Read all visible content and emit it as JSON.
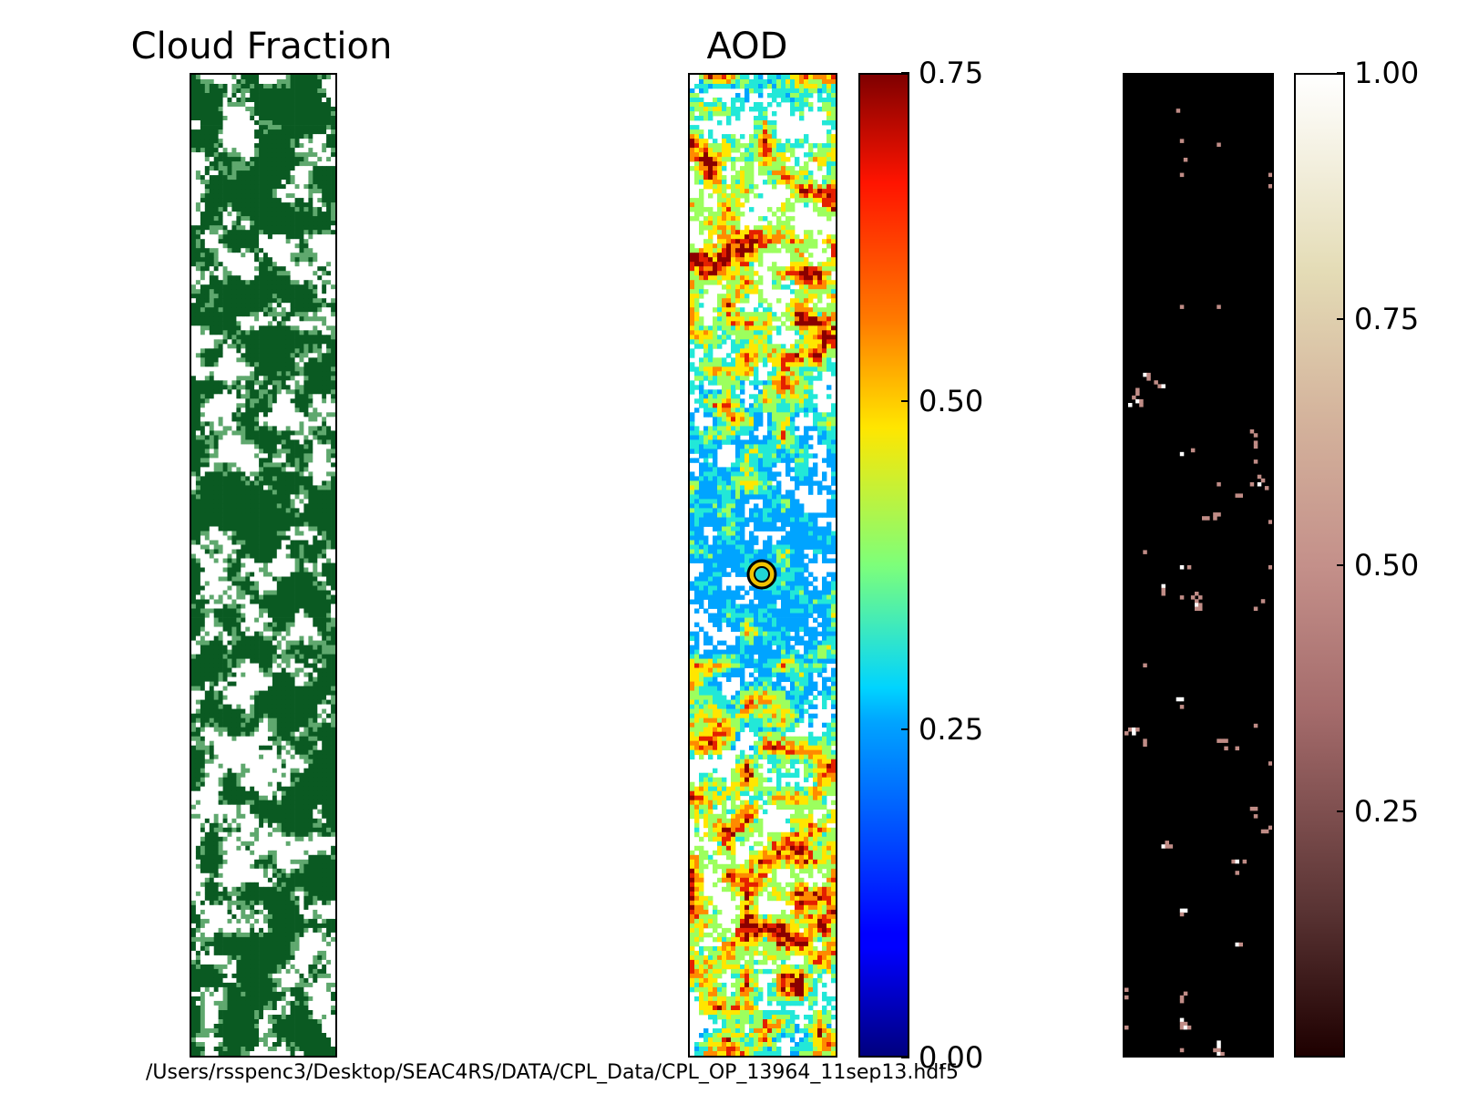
{
  "chart_data": [
    {
      "type": "heatmap",
      "title": "Cloud Fraction",
      "colormap": "Greens (white to dark green)",
      "colors": {
        "high": "#0a5a22",
        "mid": "#5fa86e",
        "low": "#ffffff"
      }
    },
    {
      "type": "heatmap",
      "title": "AOD",
      "colormap": "jet",
      "colorbar": {
        "range": [
          0.0,
          0.75
        ],
        "ticks": [
          "0.75",
          "0.50",
          "0.25",
          "0.00"
        ],
        "tick_values": [
          0.75,
          0.5,
          0.25,
          0.0
        ]
      },
      "marker": {
        "shape": "circle",
        "fill": "#20d6d6",
        "ring": "#f2c200",
        "outline": "#000000"
      }
    },
    {
      "type": "heatmap",
      "title": "",
      "colormap": "pink (black to white)",
      "colorbar": {
        "range": [
          0.0,
          1.0
        ],
        "ticks": [
          "1.00",
          "0.75",
          "0.50",
          "0.25"
        ],
        "tick_values": [
          1.0,
          0.75,
          0.5,
          0.25
        ]
      }
    }
  ],
  "footer": {
    "file_path": "/Users/rsspenc3/Desktop/SEAC4RS/DATA/CPL_Data/CPL_OP_13964_11sep13.hdf5"
  }
}
